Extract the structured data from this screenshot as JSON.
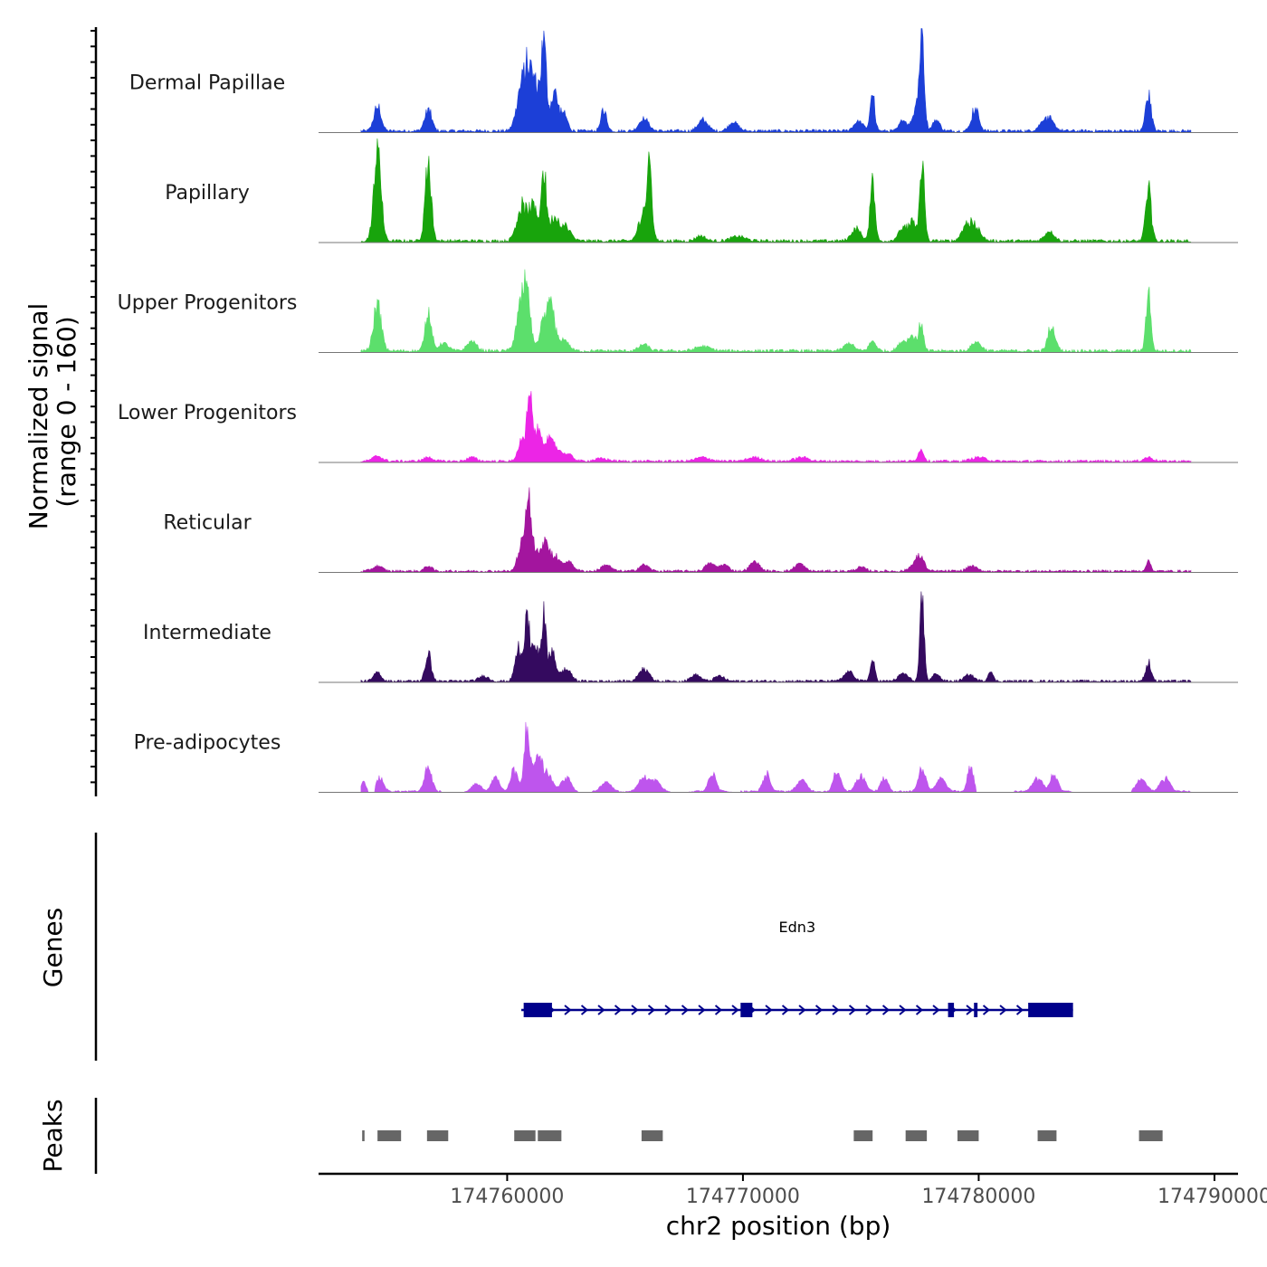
{
  "chart_data": {
    "type": "area",
    "subtype": "genome-coverage-tracks",
    "ylabel_line1": "Normalized signal",
    "ylabel_line2": "(range 0 - 160)",
    "y_range": [
      0,
      160
    ],
    "xlabel": "chr2 position (bp)",
    "x_range": [
      174752000,
      174791000
    ],
    "x_ticks": [
      174760000,
      174770000,
      174780000,
      174790000
    ],
    "x_tick_labels": [
      "174760000",
      "174770000",
      "174780000",
      "174790000"
    ],
    "signal_x_extent": [
      174753800,
      174789000
    ],
    "series": [
      {
        "name": "Dermal Papillae",
        "color": "#1C3FD7",
        "peaks": [
          [
            174754500,
            40,
            150
          ],
          [
            174756650,
            35,
            150
          ],
          [
            174760600,
            70,
            200
          ],
          [
            174760900,
            80,
            150
          ],
          [
            174761200,
            70,
            150
          ],
          [
            174761550,
            140,
            120
          ],
          [
            174762000,
            65,
            150
          ],
          [
            174762400,
            28,
            150
          ],
          [
            174764100,
            35,
            120
          ],
          [
            174765800,
            20,
            200
          ],
          [
            174768300,
            18,
            200
          ],
          [
            174769600,
            14,
            200
          ],
          [
            174774900,
            15,
            200
          ],
          [
            174775500,
            57,
            100
          ],
          [
            174776800,
            18,
            150
          ],
          [
            174777350,
            42,
            150
          ],
          [
            174777600,
            155,
            100
          ],
          [
            174778200,
            18,
            150
          ],
          [
            174779850,
            38,
            150
          ],
          [
            174782900,
            22,
            250
          ],
          [
            174787200,
            60,
            120
          ]
        ],
        "noise": 5
      },
      {
        "name": "Papillary",
        "color": "#18A40C",
        "peaks": [
          [
            174754500,
            150,
            150
          ],
          [
            174756650,
            130,
            130
          ],
          [
            174760600,
            55,
            200
          ],
          [
            174761100,
            55,
            200
          ],
          [
            174761550,
            110,
            110
          ],
          [
            174762000,
            40,
            200
          ],
          [
            174762500,
            22,
            200
          ],
          [
            174765800,
            50,
            200
          ],
          [
            174766050,
            100,
            100
          ],
          [
            174768200,
            8,
            200
          ],
          [
            174769800,
            7,
            300
          ],
          [
            174774800,
            20,
            200
          ],
          [
            174775500,
            107,
            100
          ],
          [
            174776800,
            20,
            200
          ],
          [
            174777200,
            28,
            150
          ],
          [
            174777600,
            128,
            100
          ],
          [
            174779500,
            28,
            200
          ],
          [
            174779900,
            20,
            200
          ],
          [
            174783000,
            15,
            200
          ],
          [
            174787200,
            85,
            120
          ]
        ],
        "noise": 5
      },
      {
        "name": "Upper Progenitors",
        "color": "#5CDF6C",
        "peaks": [
          [
            174754500,
            78,
            160
          ],
          [
            174756650,
            70,
            130
          ],
          [
            174757300,
            12,
            200
          ],
          [
            174758500,
            15,
            200
          ],
          [
            174760600,
            70,
            200
          ],
          [
            174760850,
            70,
            150
          ],
          [
            174761600,
            50,
            200
          ],
          [
            174761900,
            52,
            150
          ],
          [
            174762400,
            18,
            200
          ],
          [
            174765800,
            10,
            200
          ],
          [
            174768300,
            7,
            300
          ],
          [
            174774500,
            12,
            200
          ],
          [
            174775500,
            15,
            150
          ],
          [
            174776800,
            15,
            200
          ],
          [
            174777200,
            24,
            150
          ],
          [
            174777550,
            42,
            100
          ],
          [
            174779900,
            14,
            200
          ],
          [
            174783100,
            45,
            150
          ],
          [
            174787200,
            98,
            100
          ]
        ],
        "noise": 5
      },
      {
        "name": "Lower Progenitors",
        "color": "#EC25E6",
        "peaks": [
          [
            174754500,
            8,
            200
          ],
          [
            174756650,
            6,
            200
          ],
          [
            174758500,
            6,
            200
          ],
          [
            174760600,
            30,
            150
          ],
          [
            174760950,
            100,
            120
          ],
          [
            174761300,
            45,
            150
          ],
          [
            174761700,
            33,
            200
          ],
          [
            174762100,
            18,
            200
          ],
          [
            174762600,
            10,
            200
          ],
          [
            174764000,
            4,
            300
          ],
          [
            174768300,
            6,
            300
          ],
          [
            174770500,
            6,
            300
          ],
          [
            174772500,
            6,
            300
          ],
          [
            174777550,
            18,
            120
          ],
          [
            174780000,
            6,
            300
          ],
          [
            174787200,
            6,
            200
          ]
        ],
        "noise": 4
      },
      {
        "name": "Reticular",
        "color": "#A3159E",
        "peaks": [
          [
            174754500,
            8,
            200
          ],
          [
            174756650,
            8,
            150
          ],
          [
            174760600,
            45,
            150
          ],
          [
            174760900,
            130,
            100
          ],
          [
            174761200,
            40,
            150
          ],
          [
            174761600,
            48,
            150
          ],
          [
            174762000,
            25,
            200
          ],
          [
            174762600,
            15,
            200
          ],
          [
            174764200,
            10,
            200
          ],
          [
            174765800,
            10,
            200
          ],
          [
            174768600,
            12,
            200
          ],
          [
            174769200,
            10,
            200
          ],
          [
            174770500,
            15,
            200
          ],
          [
            174772400,
            12,
            200
          ],
          [
            174775000,
            6,
            200
          ],
          [
            174777550,
            20,
            150
          ],
          [
            174777300,
            12,
            200
          ],
          [
            174779700,
            8,
            200
          ],
          [
            174787200,
            16,
            100
          ]
        ],
        "noise": 4
      },
      {
        "name": "Intermediate",
        "color": "#340A5F",
        "peaks": [
          [
            174754500,
            14,
            150
          ],
          [
            174756650,
            48,
            120
          ],
          [
            174759000,
            8,
            200
          ],
          [
            174760500,
            55,
            150
          ],
          [
            174760850,
            90,
            120
          ],
          [
            174761200,
            60,
            150
          ],
          [
            174761550,
            100,
            100
          ],
          [
            174761900,
            50,
            150
          ],
          [
            174762500,
            20,
            200
          ],
          [
            174765800,
            22,
            200
          ],
          [
            174768000,
            10,
            200
          ],
          [
            174769000,
            8,
            200
          ],
          [
            174774500,
            15,
            200
          ],
          [
            174775500,
            33,
            100
          ],
          [
            174776800,
            12,
            200
          ],
          [
            174777600,
            132,
            90
          ],
          [
            174778200,
            12,
            150
          ],
          [
            174779600,
            10,
            200
          ],
          [
            174780500,
            16,
            100
          ],
          [
            174787200,
            30,
            120
          ]
        ],
        "noise": 4
      },
      {
        "name": "Pre-adipocytes",
        "color": "#BE55ED",
        "peaks": [
          [
            174753900,
            15,
            100
          ],
          [
            174754600,
            22,
            150
          ],
          [
            174756650,
            40,
            150
          ],
          [
            174758700,
            12,
            200
          ],
          [
            174759500,
            25,
            150
          ],
          [
            174760300,
            35,
            150
          ],
          [
            174760850,
            110,
            120
          ],
          [
            174761300,
            60,
            150
          ],
          [
            174761700,
            30,
            200
          ],
          [
            174762500,
            22,
            200
          ],
          [
            174764200,
            15,
            200
          ],
          [
            174765800,
            25,
            200
          ],
          [
            174766300,
            18,
            200
          ],
          [
            174768700,
            32,
            150
          ],
          [
            174771000,
            28,
            150
          ],
          [
            174772500,
            18,
            200
          ],
          [
            174774000,
            35,
            150
          ],
          [
            174775000,
            25,
            200
          ],
          [
            174776000,
            22,
            150
          ],
          [
            174777600,
            40,
            150
          ],
          [
            174778400,
            20,
            200
          ],
          [
            174779650,
            40,
            120
          ],
          [
            174782500,
            22,
            200
          ],
          [
            174783200,
            28,
            150
          ],
          [
            174786900,
            20,
            200
          ],
          [
            174787900,
            22,
            200
          ]
        ],
        "noise": 3,
        "gaps": [
          [
            174754100,
            174754400
          ],
          [
            174757200,
            174758200
          ],
          [
            174763000,
            174763600
          ],
          [
            174766900,
            174767700
          ],
          [
            174769500,
            174769900
          ],
          [
            174779900,
            174781500
          ],
          [
            174784000,
            174786500
          ]
        ]
      }
    ],
    "genes": [
      {
        "name": "Edn3",
        "strand": "+",
        "start": 174760600,
        "end": 174784000,
        "exons": [
          [
            174760700,
            174761900
          ],
          [
            174782100,
            174784000
          ]
        ],
        "small_exons": [
          [
            174769900,
            174770400
          ],
          [
            174778700,
            174778950
          ],
          [
            174779800,
            174779950
          ]
        ]
      }
    ],
    "genes_label": "Genes",
    "peaks_label": "Peaks",
    "peaks": [
      [
        174753850,
        174753950
      ],
      [
        174754500,
        174755500
      ],
      [
        174756600,
        174757500
      ],
      [
        174760300,
        174761200
      ],
      [
        174761300,
        174762300
      ],
      [
        174765700,
        174766600
      ],
      [
        174774700,
        174775500
      ],
      [
        174776900,
        174777800
      ],
      [
        174779100,
        174780000
      ],
      [
        174782500,
        174783300
      ],
      [
        174786800,
        174787800
      ]
    ]
  }
}
